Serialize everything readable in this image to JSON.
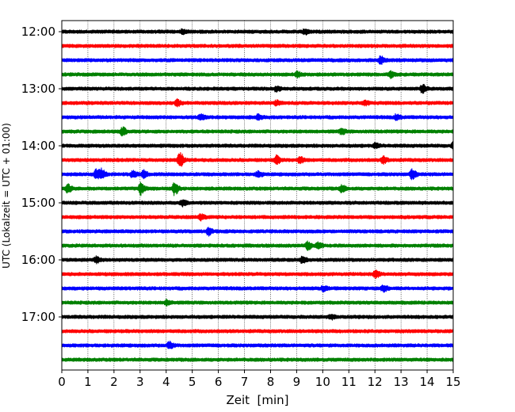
{
  "chart_data": {
    "type": "line",
    "title": "",
    "xlabel": "Zeit  [min]",
    "ylabel": "UTC (Lokalzeit = UTC + 01:00)",
    "xlim": [
      0,
      15
    ],
    "x_ticks": [
      "0",
      "1",
      "2",
      "3",
      "4",
      "5",
      "6",
      "7",
      "8",
      "9",
      "10",
      "11",
      "12",
      "13",
      "14",
      "15"
    ],
    "y_tick_labels": [
      "12:00",
      "13:00",
      "14:00",
      "15:00",
      "16:00",
      "17:00"
    ],
    "grid": "vertical dotted lines at each minute",
    "trace_colors": [
      "#000000",
      "#ff0000",
      "#0000ff",
      "#008000"
    ],
    "series": [
      {
        "start": "12:00",
        "color": "#000000",
        "events": [
          {
            "t": 4.6,
            "amp": 0.25
          },
          {
            "t": 9.3,
            "amp": 0.3
          }
        ]
      },
      {
        "start": "12:15",
        "color": "#ff0000",
        "events": []
      },
      {
        "start": "12:30",
        "color": "#0000ff",
        "events": [
          {
            "t": 12.2,
            "amp": 0.45
          }
        ]
      },
      {
        "start": "12:45",
        "color": "#008000",
        "events": [
          {
            "t": 9.0,
            "amp": 0.3
          },
          {
            "t": 12.6,
            "amp": 0.35
          }
        ]
      },
      {
        "start": "13:00",
        "color": "#000000",
        "events": [
          {
            "t": 13.8,
            "amp": 0.5
          },
          {
            "t": 8.2,
            "amp": 0.3
          }
        ]
      },
      {
        "start": "13:15",
        "color": "#ff0000",
        "events": [
          {
            "t": 4.4,
            "amp": 0.35
          },
          {
            "t": 8.2,
            "amp": 0.25
          },
          {
            "t": 11.6,
            "amp": 0.25
          }
        ]
      },
      {
        "start": "13:30",
        "color": "#0000ff",
        "events": [
          {
            "t": 5.3,
            "amp": 0.3
          },
          {
            "t": 7.5,
            "amp": 0.3
          },
          {
            "t": 12.8,
            "amp": 0.3
          }
        ]
      },
      {
        "start": "13:45",
        "color": "#008000",
        "events": [
          {
            "t": 2.3,
            "amp": 0.5
          },
          {
            "t": 10.7,
            "amp": 0.35
          }
        ]
      },
      {
        "start": "14:00",
        "color": "#000000",
        "events": [
          {
            "t": 15.0,
            "amp": 0.5
          },
          {
            "t": 12.0,
            "amp": 0.25
          }
        ]
      },
      {
        "start": "14:15",
        "color": "#ff0000",
        "events": [
          {
            "t": 4.5,
            "amp": 1.0
          },
          {
            "t": 8.2,
            "amp": 0.5
          },
          {
            "t": 9.1,
            "amp": 0.35
          },
          {
            "t": 12.3,
            "amp": 0.4
          }
        ]
      },
      {
        "start": "14:30",
        "color": "#0000ff",
        "events": [
          {
            "t": 1.3,
            "amp": 0.6
          },
          {
            "t": 1.5,
            "amp": 0.6
          },
          {
            "t": 2.7,
            "amp": 0.45
          },
          {
            "t": 3.1,
            "amp": 0.5
          },
          {
            "t": 7.5,
            "amp": 0.35
          },
          {
            "t": 13.4,
            "amp": 0.6
          }
        ]
      },
      {
        "start": "14:45",
        "color": "#008000",
        "events": [
          {
            "t": 0.2,
            "amp": 0.5
          },
          {
            "t": 3.0,
            "amp": 0.8
          },
          {
            "t": 4.3,
            "amp": 0.8
          },
          {
            "t": 10.7,
            "amp": 0.4
          }
        ]
      },
      {
        "start": "15:00",
        "color": "#000000",
        "events": [
          {
            "t": 4.6,
            "amp": 0.35
          }
        ]
      },
      {
        "start": "15:15",
        "color": "#ff0000",
        "events": [
          {
            "t": 5.3,
            "amp": 0.35
          }
        ]
      },
      {
        "start": "15:30",
        "color": "#0000ff",
        "events": [
          {
            "t": 5.6,
            "amp": 0.45
          }
        ]
      },
      {
        "start": "15:45",
        "color": "#008000",
        "events": [
          {
            "t": 9.4,
            "amp": 0.5
          },
          {
            "t": 9.8,
            "amp": 0.4
          }
        ]
      },
      {
        "start": "16:00",
        "color": "#000000",
        "events": [
          {
            "t": 1.3,
            "amp": 0.35
          },
          {
            "t": 9.2,
            "amp": 0.35
          }
        ]
      },
      {
        "start": "16:15",
        "color": "#ff0000",
        "events": [
          {
            "t": 12.0,
            "amp": 0.45
          }
        ]
      },
      {
        "start": "16:30",
        "color": "#0000ff",
        "events": [
          {
            "t": 10.0,
            "amp": 0.3
          },
          {
            "t": 12.3,
            "amp": 0.4
          }
        ]
      },
      {
        "start": "16:45",
        "color": "#008000",
        "events": [
          {
            "t": 4.0,
            "amp": 0.3
          }
        ]
      },
      {
        "start": "17:00",
        "color": "#000000",
        "events": [
          {
            "t": 10.3,
            "amp": 0.25
          }
        ]
      },
      {
        "start": "17:15",
        "color": "#ff0000",
        "events": []
      },
      {
        "start": "17:30",
        "color": "#0000ff",
        "events": [
          {
            "t": 4.1,
            "amp": 0.45
          }
        ]
      },
      {
        "start": "17:45",
        "color": "#008000",
        "events": []
      }
    ]
  }
}
